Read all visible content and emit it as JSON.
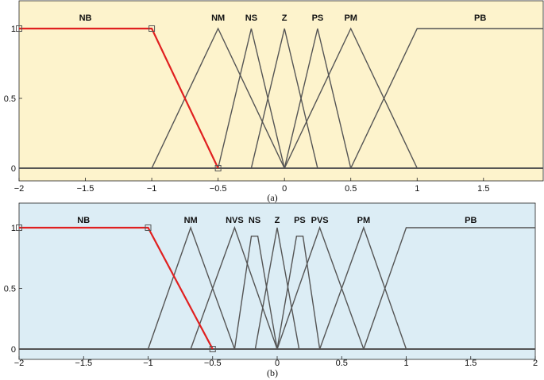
{
  "chart_data": [
    {
      "type": "line",
      "caption": "(a)",
      "background": "#fdf3cc",
      "highlight_color": "#e02020",
      "line_color": "#555555",
      "xlim": [
        -2,
        2
      ],
      "ylim": [
        0,
        1
      ],
      "x_ticks": [
        -2,
        -1.5,
        -1,
        -0.5,
        0,
        0.5,
        1,
        1.5
      ],
      "x_tick_labels": [
        "−2",
        "−1.5",
        "−1",
        "−0.5",
        "0",
        "0.5",
        "1",
        "1.5"
      ],
      "y_ticks": [
        0,
        0.5,
        1
      ],
      "y_tick_labels": [
        "0",
        "0.5",
        "1"
      ],
      "highlighted": "NB",
      "series": [
        {
          "name": "NB",
          "x": [
            -2,
            -1,
            -0.5,
            2
          ],
          "y": [
            1,
            1,
            0,
            0
          ]
        },
        {
          "name": "NM",
          "x": [
            -2,
            -1,
            -0.5,
            0,
            2
          ],
          "y": [
            0,
            0,
            1,
            0,
            0
          ]
        },
        {
          "name": "NS",
          "x": [
            -2,
            -0.5,
            -0.25,
            0.0,
            2
          ],
          "y": [
            0,
            0,
            1,
            0,
            0
          ]
        },
        {
          "name": "Z",
          "x": [
            -2,
            -0.25,
            0,
            0.25,
            2
          ],
          "y": [
            0,
            0,
            1,
            0,
            0
          ]
        },
        {
          "name": "PS",
          "x": [
            -2,
            0,
            0.25,
            0.5,
            2
          ],
          "y": [
            0,
            0,
            1,
            0,
            0
          ]
        },
        {
          "name": "PM",
          "x": [
            -2,
            0,
            0.5,
            1,
            2
          ],
          "y": [
            0,
            0,
            1,
            0,
            0
          ]
        },
        {
          "name": "PB",
          "x": [
            -2,
            0.5,
            1,
            2
          ],
          "y": [
            0,
            0,
            1,
            1
          ]
        }
      ]
    },
    {
      "type": "line",
      "caption": "(b)",
      "background": "#dcedf5",
      "highlight_color": "#e02020",
      "line_color": "#555555",
      "xlim": [
        -2,
        2
      ],
      "ylim": [
        0,
        1
      ],
      "x_ticks": [
        -2,
        -1.5,
        -1,
        -0.5,
        0,
        0.5,
        1,
        1.5,
        2
      ],
      "x_tick_labels": [
        "−2",
        "−1.5",
        "−1",
        "−0.5",
        "0",
        "0.5",
        "1",
        "1.5",
        "2"
      ],
      "y_ticks": [
        0,
        0.5,
        1
      ],
      "y_tick_labels": [
        "0",
        "0.5",
        "1"
      ],
      "highlighted": "NB",
      "series": [
        {
          "name": "NB",
          "x": [
            -2,
            -1,
            -0.5,
            2
          ],
          "y": [
            1,
            1,
            0,
            0
          ]
        },
        {
          "name": "NM",
          "x": [
            -2,
            -1,
            -0.67,
            -0.33,
            2
          ],
          "y": [
            0,
            0,
            1,
            0,
            0
          ]
        },
        {
          "name": "NVS",
          "x": [
            -2,
            -0.67,
            -0.33,
            0,
            2
          ],
          "y": [
            0,
            0,
            1,
            0,
            0
          ]
        },
        {
          "name": "NS",
          "x": [
            -2,
            -0.33,
            -0.2,
            -0.15,
            0,
            2
          ],
          "y": [
            0,
            0,
            0.93,
            0.93,
            0,
            0
          ]
        },
        {
          "name": "Z",
          "x": [
            -2,
            -0.17,
            0,
            0.17,
            2
          ],
          "y": [
            0,
            0,
            1,
            0,
            0
          ]
        },
        {
          "name": "PS",
          "x": [
            -2,
            0,
            0.15,
            0.2,
            0.33,
            2
          ],
          "y": [
            0,
            0,
            0.93,
            0.93,
            0,
            0
          ]
        },
        {
          "name": "PVS",
          "x": [
            -2,
            0,
            0.33,
            0.67,
            2
          ],
          "y": [
            0,
            0,
            1,
            0,
            0
          ]
        },
        {
          "name": "PM",
          "x": [
            -2,
            0.33,
            0.67,
            1,
            2
          ],
          "y": [
            0,
            0,
            1,
            0,
            0
          ]
        },
        {
          "name": "PB",
          "x": [
            -2,
            0.67,
            1,
            2
          ],
          "y": [
            0,
            0,
            1,
            1
          ]
        }
      ]
    }
  ]
}
